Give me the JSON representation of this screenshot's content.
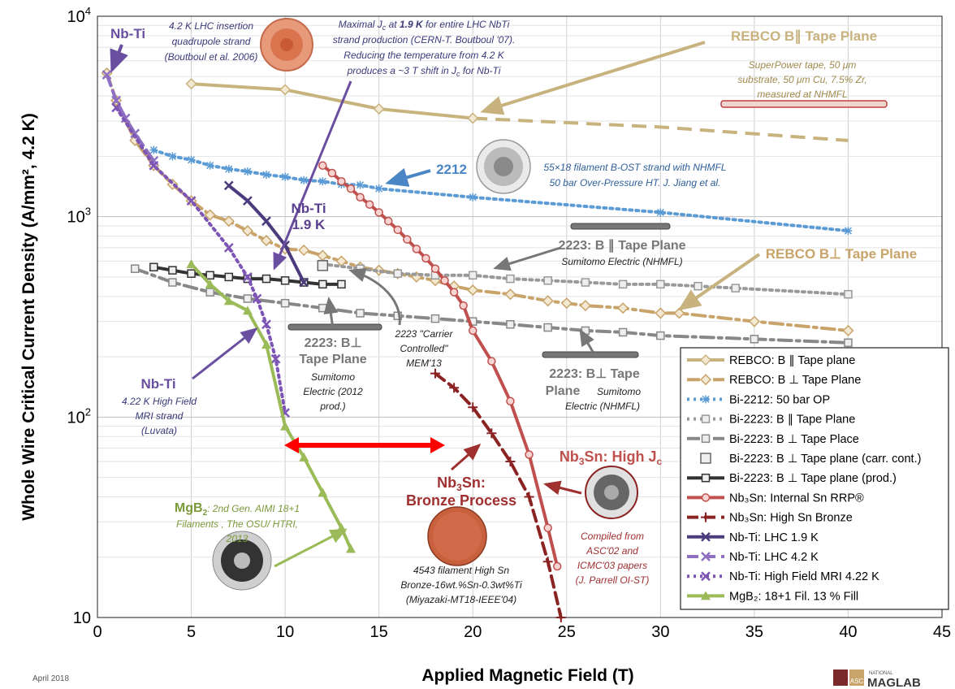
{
  "chart_data": {
    "type": "line",
    "xlabel": "Applied Magnetic Field (T)",
    "ylabel": "Whole Wire Critical Current Density (A/mm², 4.2 K)",
    "xlim": [
      0,
      45
    ],
    "ylim": [
      10,
      10000
    ],
    "yscale": "log",
    "grid": true,
    "legend_position": "bottom-right",
    "x_ticks": [
      "0",
      "5",
      "10",
      "15",
      "20",
      "25",
      "30",
      "35",
      "40",
      "45"
    ],
    "y_ticks": [
      {
        "base": "10",
        "exp": "4",
        "value": 10000
      },
      {
        "base": "10",
        "exp": "3",
        "value": 1000
      },
      {
        "base": "10",
        "exp": "2",
        "value": 100
      },
      {
        "base": "10",
        "exp": "",
        "value": 10
      }
    ],
    "series": [
      {
        "name": "REBCO: B ∥ Tape plane",
        "color": "#c8b27e",
        "style": "solid",
        "marker": "diamond",
        "points": [
          [
            5,
            4600
          ],
          [
            10,
            4300
          ],
          [
            15,
            3450
          ],
          [
            20,
            3100
          ]
        ],
        "extrapolated": [
          [
            20,
            3100
          ],
          [
            30,
            2800
          ],
          [
            40,
            2400
          ]
        ]
      },
      {
        "name": "REBCO: B ⊥ Tape Plane",
        "color": "#c8a46b",
        "style": "dashdot",
        "marker": "diamond",
        "points": [
          [
            0.5,
            5200
          ],
          [
            1,
            3800
          ],
          [
            2,
            2400
          ],
          [
            3,
            1800
          ],
          [
            4,
            1450
          ],
          [
            5,
            1200
          ],
          [
            6,
            1020
          ],
          [
            7,
            950
          ],
          [
            8,
            850
          ],
          [
            9,
            760
          ],
          [
            10,
            690
          ],
          [
            11,
            680
          ],
          [
            12,
            640
          ],
          [
            13,
            600
          ],
          [
            14,
            560
          ],
          [
            15,
            540
          ],
          [
            16,
            520
          ],
          [
            17,
            500
          ],
          [
            18,
            480
          ],
          [
            19,
            450
          ],
          [
            20,
            430
          ],
          [
            22,
            410
          ],
          [
            24,
            380
          ],
          [
            25,
            370
          ],
          [
            26,
            360
          ],
          [
            28,
            350
          ],
          [
            30,
            330
          ],
          [
            31,
            330
          ],
          [
            35,
            300
          ],
          [
            40,
            270
          ]
        ]
      },
      {
        "name": "Bi-2212: 50 bar OP",
        "color": "#5b9bd5",
        "style": "dotted",
        "marker": "star",
        "points": [
          [
            3,
            2150
          ],
          [
            4,
            2000
          ],
          [
            5,
            1920
          ],
          [
            6,
            1800
          ],
          [
            7,
            1730
          ],
          [
            8,
            1680
          ],
          [
            9,
            1620
          ],
          [
            10,
            1580
          ],
          [
            11,
            1520
          ],
          [
            12,
            1500
          ],
          [
            13,
            1450
          ],
          [
            14,
            1440
          ],
          [
            15,
            1380
          ],
          [
            20,
            1250
          ],
          [
            30,
            1050
          ],
          [
            40,
            850
          ]
        ]
      },
      {
        "name": "Bi-2223: B ∥ Tape Plane",
        "color": "#999999",
        "style": "dotted",
        "marker": "square",
        "points": [
          [
            12,
            580
          ],
          [
            14,
            550
          ],
          [
            16,
            520
          ],
          [
            18,
            510
          ],
          [
            20,
            510
          ],
          [
            22,
            490
          ],
          [
            24,
            480
          ],
          [
            26,
            470
          ],
          [
            28,
            460
          ],
          [
            30,
            460
          ],
          [
            32,
            450
          ],
          [
            34,
            440
          ],
          [
            40,
            410
          ]
        ]
      },
      {
        "name": "Bi-2223: B ⊥ Tape Place",
        "color": "#888888",
        "style": "dashdot",
        "marker": "square",
        "points": [
          [
            2,
            550
          ],
          [
            4,
            470
          ],
          [
            6,
            420
          ],
          [
            8,
            390
          ],
          [
            10,
            370
          ],
          [
            12,
            350
          ],
          [
            14,
            330
          ],
          [
            16,
            320
          ],
          [
            18,
            310
          ],
          [
            20,
            300
          ],
          [
            22,
            290
          ],
          [
            24,
            280
          ],
          [
            26,
            270
          ],
          [
            28,
            265
          ],
          [
            30,
            255
          ],
          [
            35,
            245
          ],
          [
            40,
            235
          ]
        ]
      },
      {
        "name": "Bi-2223: B ⊥ Tape plane (carr. cont.)",
        "color": "#777777",
        "style": "none",
        "marker": "square-open",
        "points": [
          [
            12,
            570
          ]
        ]
      },
      {
        "name": "Bi-2223: B ⊥ Tape plane (prod.)",
        "color": "#333333",
        "style": "solid",
        "marker": "square",
        "points": [
          [
            3,
            560
          ],
          [
            4,
            540
          ],
          [
            5,
            520
          ],
          [
            6,
            510
          ],
          [
            7,
            500
          ],
          [
            8,
            490
          ],
          [
            9,
            490
          ],
          [
            10,
            480
          ],
          [
            11,
            470
          ],
          [
            12,
            460
          ],
          [
            13,
            460
          ]
        ]
      },
      {
        "name": "Nb₃Sn: Internal Sn RRP®",
        "color": "#c0504d",
        "style": "solid",
        "marker": "circle",
        "points": [
          [
            12,
            1800
          ],
          [
            12.5,
            1650
          ],
          [
            13,
            1500
          ],
          [
            13.5,
            1380
          ],
          [
            14,
            1250
          ],
          [
            14.5,
            1150
          ],
          [
            15,
            1050
          ],
          [
            15.5,
            950
          ],
          [
            16,
            860
          ],
          [
            16.5,
            770
          ],
          [
            17,
            690
          ],
          [
            17.5,
            620
          ],
          [
            18,
            550
          ],
          [
            18.5,
            480
          ],
          [
            19,
            420
          ],
          [
            19.5,
            360
          ],
          [
            20,
            270
          ],
          [
            21,
            190
          ],
          [
            22,
            120
          ],
          [
            23,
            65
          ],
          [
            24,
            28
          ],
          [
            24.5,
            18
          ]
        ]
      },
      {
        "name": "Nb₃Sn: High Sn Bronze",
        "color": "#8b2323",
        "style": "dashed",
        "marker": "plus",
        "points": [
          [
            18,
            165
          ],
          [
            19,
            140
          ],
          [
            20,
            112
          ],
          [
            21,
            83
          ],
          [
            22,
            60
          ],
          [
            23,
            40
          ],
          [
            24,
            19
          ],
          [
            24.7,
            10
          ]
        ]
      },
      {
        "name": "Nb-Ti: LHC 1.9 K",
        "color": "#4b3b7c",
        "style": "solid",
        "marker": "x",
        "points": [
          [
            7,
            1430
          ],
          [
            8,
            1200
          ],
          [
            9,
            950
          ],
          [
            10,
            720
          ],
          [
            11,
            470
          ]
        ]
      },
      {
        "name": "Nb-Ti: LHC 4.2 K",
        "color": "#8e6fc1",
        "style": "dashed",
        "marker": "x",
        "points": [
          [
            0.5,
            5100
          ],
          [
            1,
            3800
          ],
          [
            1.5,
            3100
          ],
          [
            2,
            2600
          ],
          [
            3,
            1900
          ]
        ]
      },
      {
        "name": "Nb-Ti: High Field MRI 4.22 K",
        "color": "#7d55b5",
        "style": "dotted",
        "marker": "x",
        "points": [
          [
            1,
            3500
          ],
          [
            3,
            1800
          ],
          [
            5,
            1200
          ],
          [
            7,
            700
          ],
          [
            8,
            500
          ],
          [
            8.5,
            390
          ],
          [
            9,
            290
          ],
          [
            9.5,
            195
          ],
          [
            10,
            105
          ]
        ]
      },
      {
        "name": "MgB₂: 18+1 Fil. 13 % Fill",
        "color": "#9bbb59",
        "style": "solid",
        "marker": "triangle",
        "points": [
          [
            5,
            580
          ],
          [
            6,
            460
          ],
          [
            7,
            380
          ],
          [
            8,
            340
          ],
          [
            9,
            230
          ],
          [
            10,
            90
          ],
          [
            11,
            63
          ],
          [
            12,
            42
          ],
          [
            13,
            28
          ],
          [
            13.5,
            22
          ]
        ]
      }
    ]
  },
  "annotations": {
    "nbti_topleft": "Nb-Ti",
    "lhc_insertion": [
      "4.2 K LHC insertion",
      "quadrupole strand",
      "(Boutboul et al. 2006)"
    ],
    "maximal_jc_1": "Maximal J",
    "maximal_jc_sub": "c",
    "maximal_jc_2": " at ",
    "maximal_jc_bold": "1.9 K",
    "maximal_jc_3": " for entire LHC NbTi",
    "maximal_jc_lines": [
      "strand production (CERN-T. Boutboul '07).",
      "Reducing the temperature from 4.2 K"
    ],
    "maximal_jc_last_1": "produces a ~3 T shift  in J",
    "maximal_jc_last_sub": "c",
    "maximal_jc_last_2": " for Nb-Ti",
    "rebco_par_label": "REBCO B∥ Tape Plane",
    "superpower": [
      "SuperPower tape, 50 μm",
      "substrate, 50 μm Cu, 7.5% Zr,",
      "measured at NHMFL"
    ],
    "label_2212": "2212",
    "bost": [
      "55×18 filament B-OST strand with  NHMFL",
      "50 bar Over-Pressure HT. J. Jiang et al."
    ],
    "nbti_19k": [
      "Nb-Ti",
      "1.9 K"
    ],
    "label_2223_par": "2223: B ∥ Tape Plane",
    "sumitomo_par": "Sumitomo Electric (NHMFL)",
    "rebco_perp_label": "REBCO B⊥ Tape Plane",
    "label_2223_perp_left": [
      "2223: B⊥",
      "Tape Plane"
    ],
    "sumitomo_left": [
      "Sumitomo",
      "Electric (2012",
      "prod.)"
    ],
    "carrier": [
      "2223 \"Carrier",
      "Controlled\"",
      "MEM'13"
    ],
    "label_2223_perp_right": [
      "2223: B⊥ Tape",
      "Plane"
    ],
    "sumitomo_right_1": "Sumitomo",
    "sumitomo_right_2": "Electric (NHMFL)",
    "nbti_mri": "Nb-Ti",
    "mri_strand": [
      "4.22 K High Field",
      "MRI strand",
      "(Luvata)"
    ],
    "mgb2_1": "MgB",
    "mgb2_sub": "2",
    "mgb2_2": ": 2nd Gen. AIMI 18+1",
    "mgb2_lines": [
      "Filaments , The OSU/ HTRI,",
      "2013"
    ],
    "nb3sn_bronze_1": "Nb",
    "nb3sn_bronze_sub": "3",
    "nb3sn_bronze_2": "Sn:",
    "nb3sn_bronze_line2": "Bronze Process",
    "bronze_note": [
      "4543 filament High Sn",
      "Bronze-16wt.%Sn-0.3wt%Ti",
      "(Miyazaki-MT18-IEEE'04)"
    ],
    "nb3sn_high_1": "Nb",
    "nb3sn_high_sub": "3",
    "nb3sn_high_2": "Sn: High J",
    "nb3sn_high_sub2": "c",
    "compiled": [
      "Compiled from",
      "ASC'02 and",
      "ICMC'03 papers",
      "(J. Parrell OI-ST)"
    ]
  },
  "legend": [
    "REBCO: B ∥ Tape plane",
    "REBCO: B ⊥ Tape Plane",
    "Bi-2212: 50 bar OP",
    "Bi-2223: B ∥ Tape Plane",
    "Bi-2223: B ⊥ Tape Place",
    "Bi-2223: B ⊥ Tape plane (carr. cont.)",
    "Bi-2223: B ⊥ Tape plane (prod.)",
    "Nb₃Sn: Internal Sn RRP®",
    "Nb₃Sn: High Sn Bronze",
    "Nb-Ti: LHC 1.9 K",
    "Nb-Ti: LHC 4.2 K",
    "Nb-Ti: High Field MRI 4.22 K",
    "MgB₂: 18+1 Fil. 13 % Fill"
  ],
  "footer": {
    "date": "April 2018",
    "logo_asc": "ASC",
    "logo_national": "NATIONAL",
    "logo_maglab": "MAGLAB"
  }
}
